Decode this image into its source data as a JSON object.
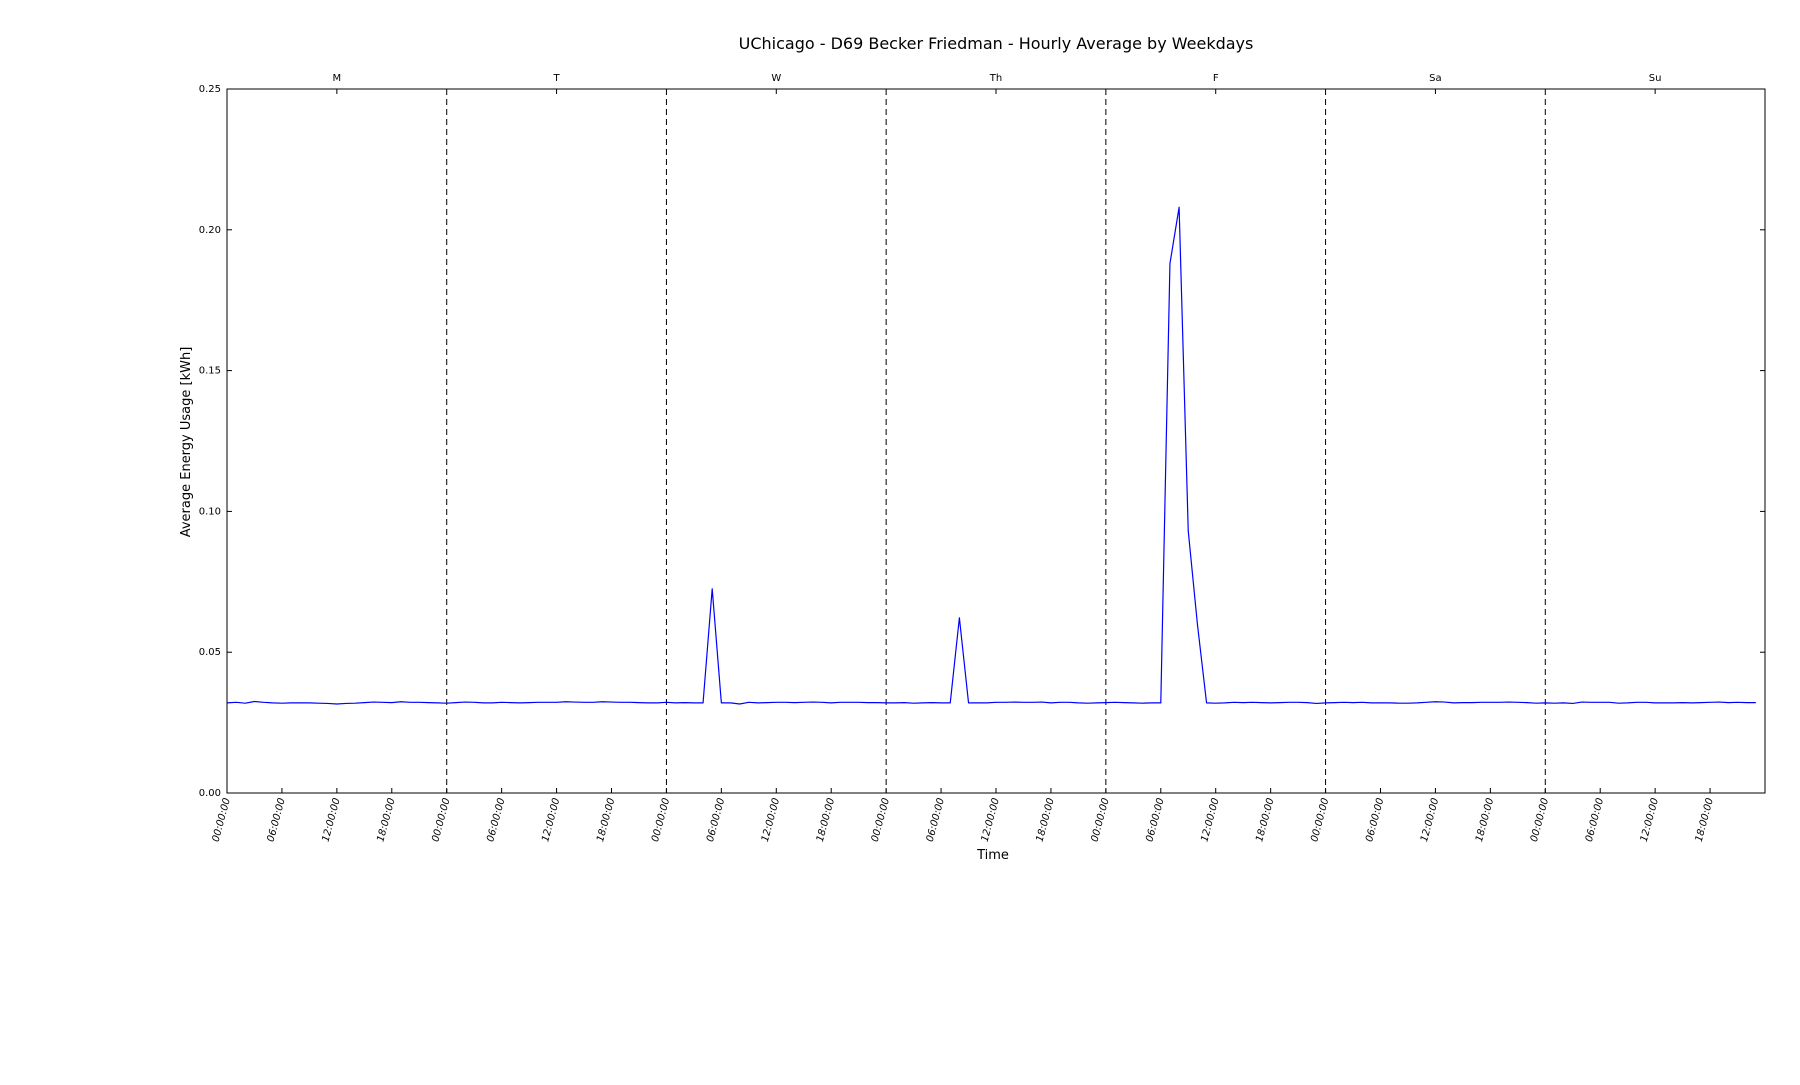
{
  "chart_data": {
    "type": "line",
    "title": "UChicago - D69 Becker Friedman - Hourly Average by Weekdays",
    "xlabel": "Time",
    "ylabel": "Average Energy Usage [kWh]",
    "ylim": [
      0,
      0.25
    ],
    "y_ticks": [
      "0.00",
      "0.05",
      "0.10",
      "0.15",
      "0.20",
      "0.25"
    ],
    "x_tick_labels": [
      "00:00:00",
      "06:00:00",
      "12:00:00",
      "18:00:00"
    ],
    "days": [
      "M",
      "T",
      "W",
      "Th",
      "F",
      "Sa",
      "Su"
    ],
    "hours_per_day": 24,
    "grid": false,
    "day_separators": "dashed",
    "series": [
      {
        "color": "#0000ff",
        "values": [
          0.032,
          0.0322,
          0.0319,
          0.0325,
          0.0322,
          0.032,
          0.0319,
          0.032,
          0.032,
          0.032,
          0.0319,
          0.0318,
          0.0316,
          0.0318,
          0.0319,
          0.0321,
          0.0323,
          0.0322,
          0.0321,
          0.0324,
          0.0322,
          0.0322,
          0.0321,
          0.032,
          0.0319,
          0.0321,
          0.0323,
          0.0322,
          0.032,
          0.032,
          0.0322,
          0.0321,
          0.032,
          0.0321,
          0.0322,
          0.0322,
          0.0322,
          0.0324,
          0.0323,
          0.0322,
          0.0322,
          0.0324,
          0.0323,
          0.0322,
          0.0322,
          0.0321,
          0.032,
          0.032,
          0.0322,
          0.032,
          0.0321,
          0.032,
          0.032,
          0.0725,
          0.032,
          0.032,
          0.0316,
          0.0322,
          0.032,
          0.0321,
          0.0322,
          0.0322,
          0.0321,
          0.0322,
          0.0323,
          0.0322,
          0.032,
          0.0322,
          0.0322,
          0.0322,
          0.0321,
          0.0321,
          0.032,
          0.032,
          0.0321,
          0.0319,
          0.032,
          0.0321,
          0.032,
          0.032,
          0.0622,
          0.032,
          0.032,
          0.032,
          0.0322,
          0.0322,
          0.0323,
          0.0322,
          0.0322,
          0.0323,
          0.032,
          0.0322,
          0.0322,
          0.032,
          0.0319,
          0.032,
          0.0321,
          0.0322,
          0.0321,
          0.032,
          0.0319,
          0.032,
          0.032,
          0.188,
          0.208,
          0.093,
          0.06,
          0.032,
          0.0319,
          0.032,
          0.0322,
          0.0321,
          0.0322,
          0.0321,
          0.032,
          0.0321,
          0.0322,
          0.0322,
          0.0321,
          0.0318,
          0.032,
          0.0321,
          0.0322,
          0.0321,
          0.0322,
          0.032,
          0.032,
          0.032,
          0.0319,
          0.0319,
          0.032,
          0.0322,
          0.0324,
          0.0323,
          0.032,
          0.0321,
          0.0321,
          0.0322,
          0.0322,
          0.0322,
          0.0323,
          0.0322,
          0.0321,
          0.0319,
          0.032,
          0.0319,
          0.032,
          0.0318,
          0.0323,
          0.0322,
          0.0322,
          0.0322,
          0.0319,
          0.032,
          0.0322,
          0.0322,
          0.032,
          0.032,
          0.032,
          0.0321,
          0.032,
          0.0321,
          0.0322,
          0.0323,
          0.0321,
          0.0322,
          0.0321,
          0.0321
        ]
      }
    ]
  }
}
